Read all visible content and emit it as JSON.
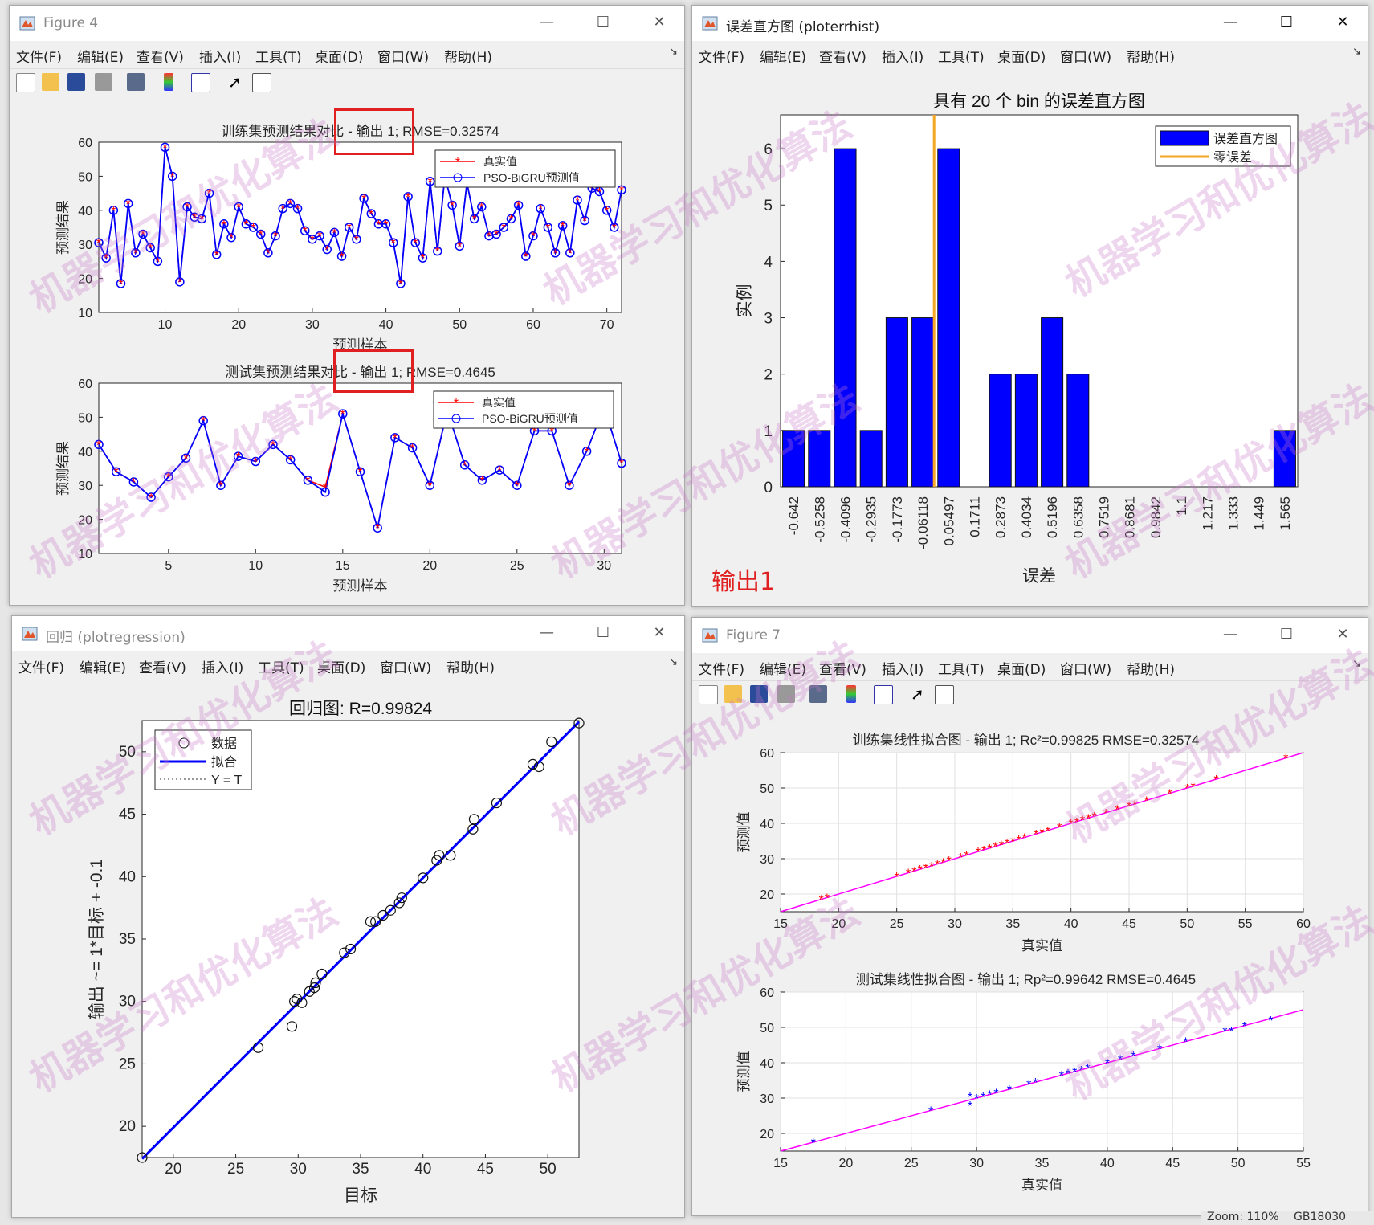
{
  "menu": [
    "文件(F)",
    "编辑(E)",
    "查看(V)",
    "插入(I)",
    "工具(T)",
    "桌面(D)",
    "窗口(W)",
    "帮助(H)"
  ],
  "windows": {
    "fig4": {
      "title": "Figure 4"
    },
    "hist": {
      "title": "误差直方图 (ploterrhist)"
    },
    "reg": {
      "title": "回归 (plotregression)"
    },
    "fig7": {
      "title": "Figure 7"
    }
  },
  "output_label": "输出1",
  "watermark": "机器学习和优化算法",
  "status": {
    "zoom": "Zoom: 110%",
    "code": "GB18030"
  },
  "colors": {
    "blue": "#0000ff",
    "red": "#ff0000",
    "orange": "#f5a623",
    "magenta": "#ff00ff",
    "hist": "#0000ff"
  },
  "chart_data": [
    {
      "type": "line",
      "title": "训练集预测结果对比 - 输出 1; RMSE=0.32574",
      "xlabel": "预测样本",
      "ylabel": "预测结果",
      "xlim": [
        1,
        72
      ],
      "ylim": [
        10,
        60
      ],
      "xticks": [
        10,
        20,
        30,
        40,
        50,
        60,
        70
      ],
      "yticks": [
        10,
        20,
        30,
        40,
        50,
        60
      ],
      "legend": [
        "真实值",
        "PSO-BiGRU预测值"
      ],
      "series": [
        {
          "name": "真实值",
          "values": [
            30.5,
            26,
            40,
            18.5,
            42,
            27.5,
            33,
            29,
            25,
            58.5,
            50,
            19,
            41,
            38,
            37.5,
            45,
            27,
            36,
            32,
            41,
            36,
            35,
            33,
            27.5,
            32.5,
            40.5,
            42,
            40.5,
            34,
            31.5,
            32.5,
            28.5,
            33.5,
            26.5,
            35,
            31.5,
            43.5,
            39,
            36,
            36,
            30.5,
            18.5,
            44,
            30.5,
            26,
            48.5,
            28,
            50,
            41.5,
            29.5,
            48,
            37.5,
            41,
            32.5,
            33,
            35,
            37.5,
            41.5,
            26.5,
            32.5,
            40.5,
            35,
            27.5,
            35.5,
            27.5,
            43,
            37,
            46.5,
            45.5,
            40,
            35,
            46
          ],
          "name2": "PSO-BiGRU预测值"
        }
      ]
    },
    {
      "type": "line",
      "title": "测试集预测结果对比 - 输出 1; RMSE=0.4645",
      "xlabel": "预测样本",
      "ylabel": "预测结果",
      "xlim": [
        1,
        31
      ],
      "ylim": [
        10,
        60
      ],
      "xticks": [
        5,
        10,
        15,
        20,
        25,
        30
      ],
      "yticks": [
        10,
        20,
        30,
        40,
        50,
        60
      ],
      "legend": [
        "真实值",
        "PSO-BiGRU预测值"
      ],
      "series": [
        {
          "name": "真实值",
          "values": [
            42,
            34,
            31,
            26.5,
            32.5,
            38,
            49,
            30,
            38.5,
            37,
            42,
            37.5,
            31.5,
            29.5,
            51,
            34,
            17.5,
            44,
            41,
            30,
            52,
            36,
            31.5,
            34.5,
            30,
            46,
            46,
            30,
            40,
            53,
            36.5
          ]
        },
        {
          "name": "PSO-BiGRU预测值",
          "values": [
            42,
            34,
            31,
            26.5,
            32.5,
            38,
            49,
            30,
            38.5,
            37,
            42,
            37.5,
            31.5,
            28,
            51,
            34,
            17.5,
            44,
            41,
            30,
            52,
            36,
            31.5,
            34.5,
            30,
            46,
            46,
            30,
            40,
            53,
            36.5
          ]
        }
      ]
    },
    {
      "type": "bar",
      "title": "具有 20 个 bin 的误差直方图",
      "xlabel": "误差",
      "ylabel": "实例",
      "categories": [
        "-0.642",
        "-0.5258",
        "-0.4096",
        "-0.2935",
        "-0.1773",
        "-0.06118",
        "0.05497",
        "0.1711",
        "0.2873",
        "0.4034",
        "0.5196",
        "0.6358",
        "0.7519",
        "0.8681",
        "0.9842",
        "1.1",
        "1.217",
        "1.333",
        "1.449",
        "1.565"
      ],
      "values": [
        1,
        1,
        6,
        1,
        3,
        3,
        6,
        0,
        2,
        2,
        3,
        2,
        0,
        0,
        0,
        0,
        0,
        0,
        0,
        1
      ],
      "ylim": [
        0,
        6.6
      ],
      "yticks": [
        0,
        1,
        2,
        3,
        4,
        5,
        6
      ],
      "legend": [
        "误差直方图",
        "零误差"
      ],
      "zero_error_position": 0
    },
    {
      "type": "scatter",
      "title": "回归图: R=0.99824",
      "xlabel": "目标",
      "ylabel": "输出 ~= 1*目标 + -0.1",
      "xlim": [
        17.5,
        52.5
      ],
      "ylim": [
        17.5,
        52.5
      ],
      "xticks": [
        20,
        25,
        30,
        35,
        40,
        45,
        50
      ],
      "yticks": [
        20,
        25,
        30,
        35,
        40,
        45,
        50
      ],
      "legend": [
        "数据",
        "拟合",
        "Y = T"
      ],
      "points": [
        [
          17.5,
          17.5
        ],
        [
          26.8,
          26.3
        ],
        [
          29.5,
          28
        ],
        [
          29.7,
          30
        ],
        [
          29.9,
          30.2
        ],
        [
          30.3,
          29.9
        ],
        [
          30.9,
          30.8
        ],
        [
          31.3,
          31.1
        ],
        [
          31.4,
          31.5
        ],
        [
          31.9,
          32.2
        ],
        [
          33.7,
          33.9
        ],
        [
          34.2,
          34.2
        ],
        [
          35.8,
          36.4
        ],
        [
          36.2,
          36.4
        ],
        [
          36.8,
          36.9
        ],
        [
          37.4,
          37.3
        ],
        [
          38.1,
          37.9
        ],
        [
          38.3,
          38.3
        ],
        [
          40,
          39.9
        ],
        [
          41.1,
          41.3
        ],
        [
          41.3,
          41.7
        ],
        [
          42.2,
          41.7
        ],
        [
          44,
          43.8
        ],
        [
          44.1,
          44.6
        ],
        [
          45.9,
          45.9
        ],
        [
          48.8,
          49
        ],
        [
          49.3,
          48.8
        ],
        [
          50.3,
          50.8
        ],
        [
          52.5,
          52.3
        ]
      ],
      "fit": {
        "slope": 1,
        "intercept": -0.1
      }
    },
    {
      "type": "scatter",
      "title": "训练集线性拟合图 - 输出 1; R_c^2=0.99825  RMSE=0.32574",
      "xlabel": "真实值",
      "ylabel": "预测值",
      "xlim": [
        15,
        60
      ],
      "ylim": [
        15,
        60
      ],
      "xticks": [
        15,
        20,
        25,
        30,
        35,
        40,
        45,
        50,
        55,
        60
      ],
      "yticks": [
        20,
        30,
        40,
        50,
        60
      ],
      "x": [
        18.5,
        19,
        25,
        26,
        26.5,
        27,
        27.5,
        28,
        28.5,
        29,
        29.5,
        30.5,
        31,
        32,
        32.5,
        33,
        33.5,
        34,
        34.5,
        35,
        35.5,
        36,
        37,
        37.5,
        38,
        39,
        40,
        40.5,
        41,
        41.5,
        42,
        43,
        44,
        45,
        45.5,
        46.5,
        48.5,
        50,
        50.5,
        52.5,
        58.5
      ],
      "y": [
        18.5,
        19,
        25,
        26,
        26.5,
        27,
        27.5,
        28,
        28.5,
        29,
        29.5,
        30.5,
        31,
        32,
        32.5,
        33,
        33.5,
        34,
        34.5,
        35,
        35.5,
        36,
        37,
        37.5,
        38,
        39,
        40,
        40.5,
        41,
        41.5,
        42,
        43,
        44,
        45,
        45.5,
        46.5,
        48.5,
        50,
        50.5,
        52.5,
        58.5
      ]
    },
    {
      "type": "scatter",
      "title": "测试集线性拟合图 - 输出 1; R_p^2=0.99642  RMSE=0.4645",
      "xlabel": "真实值",
      "ylabel": "预测值",
      "xlim": [
        15,
        55
      ],
      "ylim": [
        15,
        60
      ],
      "xticks": [
        15,
        20,
        25,
        30,
        35,
        40,
        45,
        50,
        55
      ],
      "yticks": [
        20,
        30,
        40,
        50,
        60
      ],
      "x": [
        17.5,
        26.5,
        29.5,
        29.5,
        30,
        30.5,
        31,
        31.5,
        32.5,
        34,
        34.5,
        36.5,
        37,
        37.5,
        38,
        38.5,
        40,
        41,
        42,
        44,
        46,
        49,
        49.5,
        50.5,
        52.5
      ],
      "y": [
        17.5,
        26.5,
        28,
        30.5,
        30,
        30.5,
        31,
        31.5,
        32.5,
        34,
        34.5,
        36.5,
        37,
        37.5,
        38,
        38.5,
        40,
        41,
        42,
        44,
        46,
        49,
        49,
        50.5,
        52
      ]
    }
  ]
}
